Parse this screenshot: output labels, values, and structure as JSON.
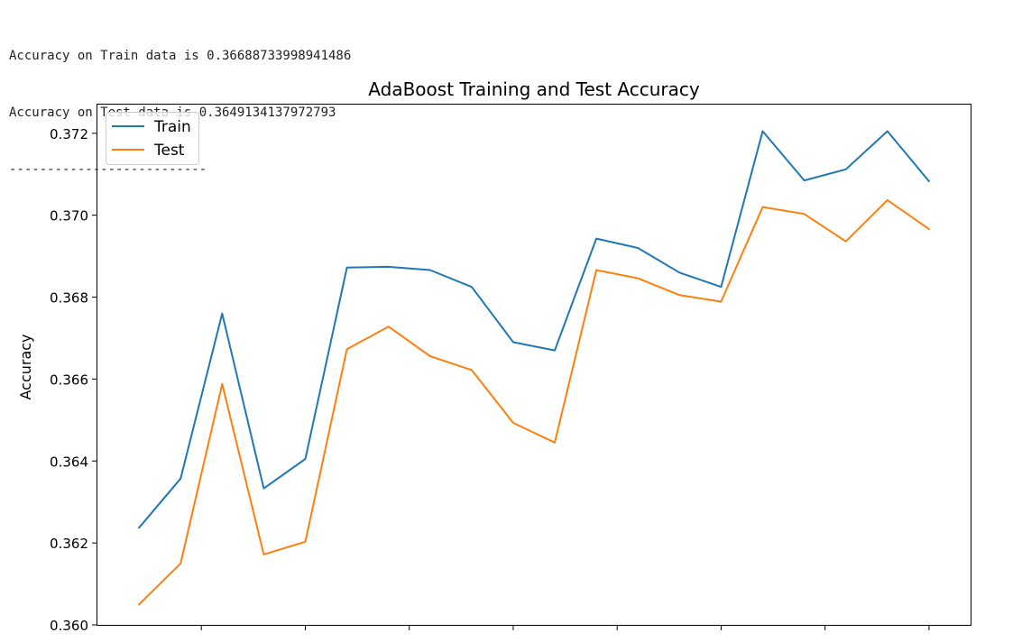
{
  "console_output": {
    "lines": [
      "Accuracy on Train data is 0.36688733998941486",
      "Accuracy on Test data is 0.3649134137972793",
      "--------------------------"
    ]
  },
  "chart_data": {
    "type": "line",
    "title": "AdaBoost Training and Test Accuracy",
    "xlabel": "",
    "ylabel": "Accuracy",
    "x": [
      1,
      2,
      3,
      4,
      5,
      6,
      7,
      8,
      9,
      10,
      11,
      12,
      13,
      14,
      15,
      16,
      17,
      18,
      19,
      20
    ],
    "xticks": [
      2.5,
      5,
      7.5,
      10,
      12.5,
      15,
      17.5,
      20
    ],
    "xlim": [
      0,
      21
    ],
    "ylim": [
      0.36,
      0.3727
    ],
    "yticks": [
      0.36,
      0.362,
      0.364,
      0.366,
      0.368,
      0.37,
      0.372
    ],
    "ytick_labels": [
      "0.360",
      "0.362",
      "0.364",
      "0.366",
      "0.368",
      "0.370",
      "0.372"
    ],
    "legend_position": "upper-left",
    "series": [
      {
        "name": "Train",
        "color": "#1f77b4",
        "values": [
          0.36237,
          0.36357,
          0.3676,
          0.36333,
          0.36405,
          0.36872,
          0.36874,
          0.36866,
          0.36825,
          0.3669,
          0.3667,
          0.36943,
          0.3692,
          0.3686,
          0.36825,
          0.37205,
          0.37085,
          0.37112,
          0.37205,
          0.37083
        ]
      },
      {
        "name": "Test",
        "color": "#ff7f0e",
        "values": [
          0.3605,
          0.3615,
          0.36588,
          0.36172,
          0.36203,
          0.36673,
          0.36728,
          0.36656,
          0.36622,
          0.36493,
          0.36445,
          0.36866,
          0.36846,
          0.36805,
          0.36789,
          0.3702,
          0.37003,
          0.36936,
          0.37037,
          0.36966
        ]
      }
    ]
  }
}
